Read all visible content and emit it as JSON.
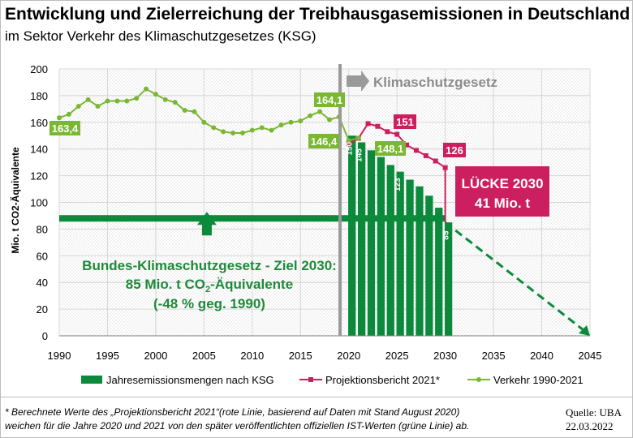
{
  "title": "Entwicklung und Zielerreichung der Treibhausgasemissionen in Deutschland",
  "subtitle": "im Sektor Verkehr des Klimaschutzgesetzes (KSG)",
  "colors": {
    "green_dark": "#0a8a3a",
    "green_light": "#7ab733",
    "pink": "#cc1f5f",
    "grey_arrow": "#9a9a9a",
    "target_text": "#1f8a3a"
  },
  "chart_data": {
    "type": "line",
    "xlabel": "",
    "ylabel": "Mio. t CO2-Äquivalente",
    "xlim": [
      1990,
      2045
    ],
    "ylim": [
      0,
      200
    ],
    "x_ticks": [
      "1990",
      "1995",
      "2000",
      "2005",
      "2010",
      "2015",
      "2020",
      "2025",
      "2030",
      "2035",
      "2040",
      "2045"
    ],
    "y_ticks": [
      "0",
      "20",
      "40",
      "60",
      "80",
      "100",
      "120",
      "140",
      "160",
      "180",
      "200"
    ],
    "grid": true,
    "legend_position": "bottom",
    "series": [
      {
        "name": "Jahresemissionsmengen nach KSG",
        "kind": "bar",
        "x": [
          2020,
          2021,
          2022,
          2023,
          2024,
          2025,
          2026,
          2027,
          2028,
          2029,
          2030
        ],
        "values": [
          150,
          145,
          139,
          134,
          128,
          123,
          117,
          112,
          105,
          96,
          85
        ]
      },
      {
        "name": "Projektionsbericht 2021*",
        "kind": "line",
        "x": [
          2020,
          2021,
          2022,
          2023,
          2024,
          2025,
          2026,
          2027,
          2028,
          2029,
          2030
        ],
        "values": [
          144,
          148,
          159,
          157,
          153,
          151,
          143,
          139,
          135,
          131,
          126
        ]
      },
      {
        "name": "Verkehr 1990-2021",
        "kind": "line",
        "x": [
          1990,
          1991,
          1992,
          1993,
          1994,
          1995,
          1996,
          1997,
          1998,
          1999,
          2000,
          2001,
          2002,
          2003,
          2004,
          2005,
          2006,
          2007,
          2008,
          2009,
          2010,
          2011,
          2012,
          2013,
          2014,
          2015,
          2016,
          2017,
          2018,
          2019,
          2020,
          2021
        ],
        "values": [
          163.4,
          166,
          172,
          177,
          172,
          176,
          176,
          176,
          178,
          185,
          181,
          177,
          175,
          169,
          168,
          160,
          156,
          153,
          152,
          152,
          154,
          156,
          154,
          158,
          160,
          161,
          165,
          168,
          162,
          164.1,
          146.4,
          148.1
        ]
      },
      {
        "name": "Zielpfad",
        "kind": "dashed",
        "x": [
          2030,
          2045
        ],
        "values": [
          85,
          0
        ]
      }
    ],
    "target_line": 88,
    "ksg_start": 2019.1,
    "point_labels": [
      {
        "text": "163,4"
      },
      {
        "text": "164,1"
      },
      {
        "text": "146,4"
      },
      {
        "text": "148,1"
      },
      {
        "text": "151"
      },
      {
        "text": "126"
      }
    ],
    "bar_labels": [
      "150",
      "145",
      "123",
      "85"
    ],
    "annotations": {
      "ksg": "Klimaschutzgesetz",
      "gap_line1": "LÜCKE 2030",
      "gap_line2": "41 Mio. t",
      "target_line1": "Bundes-Klimaschutzgesetz - Ziel 2030:",
      "target_line2a": "85 Mio. t CO",
      "target_line2sub": "2",
      "target_line2b": "-Äquivalente",
      "target_line3": "(-48 % geg. 1990)"
    }
  },
  "legend": {
    "bars": "Jahresemissionsmengen nach KSG",
    "projection": "Projektionsbericht 2021*",
    "traffic": "Verkehr 1990-2021"
  },
  "footnote": {
    "line1": "* Berechnete Werte des „Projektionsbericht 2021“(rote Linie, basierend auf Daten mit Stand August 2020)",
    "line2": "weichen für die Jahre 2020 und 2021 von den später veröffentlichten offiziellen IST-Werten (grüne Linie) ab."
  },
  "source": {
    "line1": "Quelle: UBA",
    "line2": "22.03.2022"
  }
}
